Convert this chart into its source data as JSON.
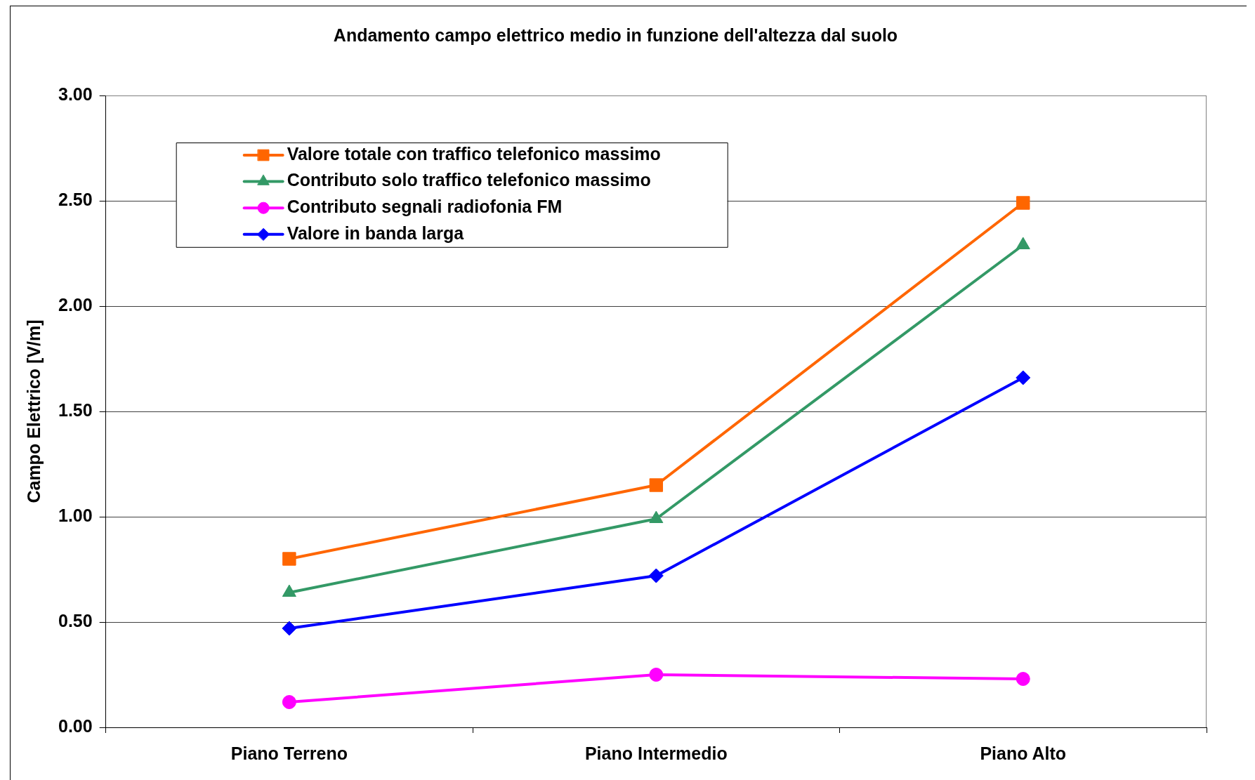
{
  "chart_data": {
    "type": "line",
    "title": "Andamento campo elettrico medio in funzione dell'altezza dal suolo",
    "ylabel": "Campo Elettrico [V/m]",
    "categories": [
      "Piano Terreno",
      "Piano Intermedio",
      "Piano Alto"
    ],
    "series": [
      {
        "name": "Valore totale con traffico telefonico massimo",
        "color": "#ff6600",
        "marker": "square",
        "values": [
          0.8,
          1.15,
          2.49
        ]
      },
      {
        "name": "Contributo solo traffico telefonico massimo",
        "color": "#339966",
        "marker": "triangle",
        "values": [
          0.64,
          0.99,
          2.29
        ]
      },
      {
        "name": "Contributo segnali radiofonia FM",
        "color": "#ff00ff",
        "marker": "circle",
        "values": [
          0.12,
          0.25,
          0.23
        ]
      },
      {
        "name": "Valore in banda larga",
        "color": "#0000ff",
        "marker": "diamond",
        "values": [
          0.47,
          0.72,
          1.66
        ]
      }
    ],
    "ylim": [
      0,
      3
    ],
    "yticks": [
      {
        "value": 0,
        "label": "0.00"
      },
      {
        "value": 0.5,
        "label": "0.50"
      },
      {
        "value": 1,
        "label": "1.00"
      },
      {
        "value": 1.5,
        "label": "1.50"
      },
      {
        "value": 2,
        "label": "2.00"
      },
      {
        "value": 2.5,
        "label": "2.50"
      },
      {
        "value": 3,
        "label": "3.00"
      }
    ],
    "grid": "y",
    "legend": "top left",
    "line_style": "solid"
  }
}
